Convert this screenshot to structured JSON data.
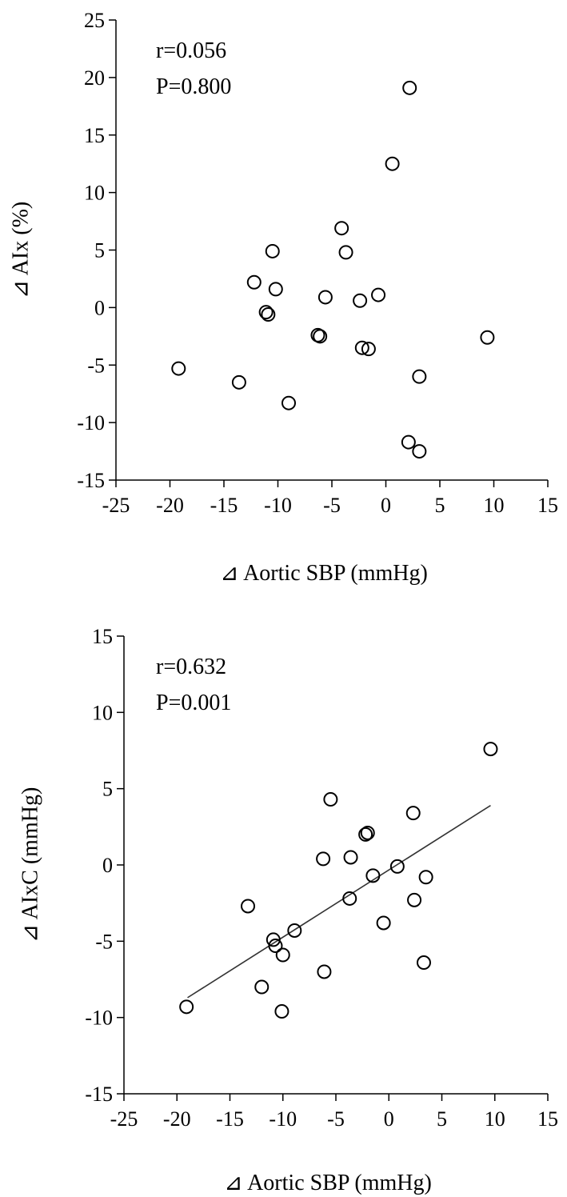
{
  "chart_data": [
    {
      "type": "scatter",
      "title": "",
      "xlabel": "⊿ Aortic  SBP (mmHg)",
      "ylabel": "⊿ AIx  (%)",
      "xlim": [
        -25,
        15
      ],
      "ylim": [
        -15,
        25
      ],
      "xticks": [
        -25,
        -20,
        -15,
        -10,
        -5,
        0,
        5,
        10,
        15
      ],
      "yticks": [
        -15,
        -10,
        -5,
        0,
        5,
        10,
        15,
        20,
        25
      ],
      "annotations": [
        "r=0.056",
        "P=0.800"
      ],
      "grid": false,
      "trendline": null,
      "points": [
        {
          "x": 2.2,
          "y": 19.1
        },
        {
          "x": 0.6,
          "y": 12.5
        },
        {
          "x": -4.1,
          "y": 6.9
        },
        {
          "x": -10.5,
          "y": 4.9
        },
        {
          "x": -3.7,
          "y": 4.8
        },
        {
          "x": -12.2,
          "y": 2.2
        },
        {
          "x": -10.2,
          "y": 1.6
        },
        {
          "x": -5.6,
          "y": 0.9
        },
        {
          "x": -0.7,
          "y": 1.1
        },
        {
          "x": -2.4,
          "y": 0.6
        },
        {
          "x": -11.1,
          "y": -0.4
        },
        {
          "x": -10.9,
          "y": -0.6
        },
        {
          "x": -6.3,
          "y": -2.4
        },
        {
          "x": -6.1,
          "y": -2.5
        },
        {
          "x": 9.4,
          "y": -2.6
        },
        {
          "x": -2.2,
          "y": -3.5
        },
        {
          "x": -1.6,
          "y": -3.6
        },
        {
          "x": -19.2,
          "y": -5.3
        },
        {
          "x": 3.1,
          "y": -6.0
        },
        {
          "x": -13.6,
          "y": -6.5
        },
        {
          "x": -9.0,
          "y": -8.3
        },
        {
          "x": 2.1,
          "y": -11.7
        },
        {
          "x": 3.1,
          "y": -12.5
        }
      ]
    },
    {
      "type": "scatter",
      "title": "",
      "xlabel": "⊿ Aortic  SBP (mmHg)",
      "ylabel": "⊿ AIxC  (mmHg)",
      "xlim": [
        -25,
        15
      ],
      "ylim": [
        -15,
        15
      ],
      "xticks": [
        -25,
        -20,
        -15,
        -10,
        -5,
        0,
        5,
        10,
        15
      ],
      "yticks": [
        -15,
        -10,
        -5,
        0,
        5,
        10,
        15
      ],
      "annotations": [
        "r=0.632",
        "P=0.001"
      ],
      "grid": false,
      "trendline": {
        "x1": -19.0,
        "y1": -8.7,
        "x2": 9.6,
        "y2": 3.9
      },
      "points": [
        {
          "x": 9.6,
          "y": 7.6
        },
        {
          "x": -5.5,
          "y": 4.3
        },
        {
          "x": 2.3,
          "y": 3.4
        },
        {
          "x": -2.2,
          "y": 2.0
        },
        {
          "x": -2.0,
          "y": 2.1
        },
        {
          "x": -6.2,
          "y": 0.4
        },
        {
          "x": -3.6,
          "y": 0.5
        },
        {
          "x": 0.8,
          "y": -0.1
        },
        {
          "x": -1.5,
          "y": -0.7
        },
        {
          "x": 3.5,
          "y": -0.8
        },
        {
          "x": -3.7,
          "y": -2.2
        },
        {
          "x": 2.4,
          "y": -2.3
        },
        {
          "x": -13.3,
          "y": -2.7
        },
        {
          "x": -0.5,
          "y": -3.8
        },
        {
          "x": -8.9,
          "y": -4.3
        },
        {
          "x": -10.9,
          "y": -4.9
        },
        {
          "x": -10.7,
          "y": -5.3
        },
        {
          "x": -10.0,
          "y": -5.9
        },
        {
          "x": 3.3,
          "y": -6.4
        },
        {
          "x": -6.1,
          "y": -7.0
        },
        {
          "x": -12.0,
          "y": -8.0
        },
        {
          "x": -19.1,
          "y": -9.3
        },
        {
          "x": -10.1,
          "y": -9.6
        }
      ]
    }
  ]
}
